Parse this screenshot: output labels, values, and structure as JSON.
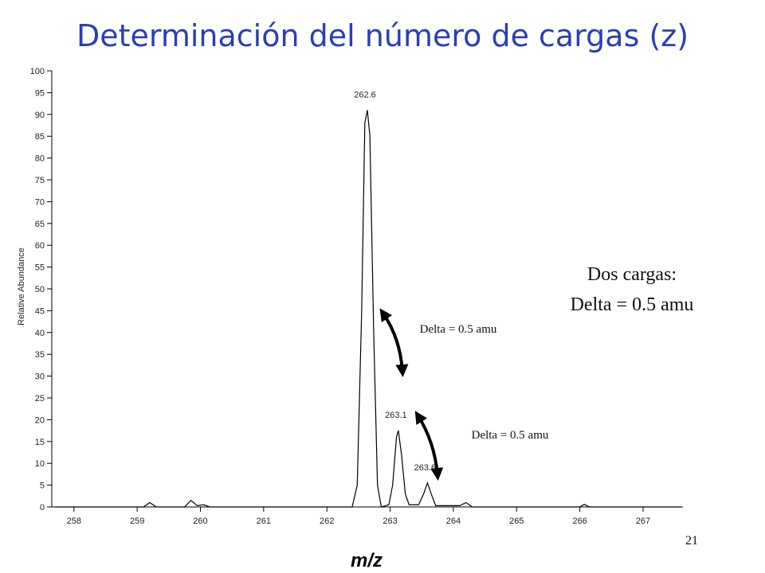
{
  "chart_data": {
    "type": "line",
    "title": "Determinación del número de cargas (z)",
    "y_label": "Relative Abundance",
    "x_label": "m/z",
    "color": "#000000",
    "xlim": [
      257.65,
      267.63
    ],
    "ylim": [
      0,
      100
    ],
    "xticks": [
      258,
      259,
      260,
      261,
      262,
      263,
      264,
      265,
      266,
      267
    ],
    "yticks": [
      0,
      5,
      10,
      15,
      20,
      25,
      30,
      35,
      40,
      45,
      50,
      55,
      60,
      65,
      70,
      75,
      80,
      85,
      90,
      95,
      100
    ],
    "x": [
      257.7,
      259.1,
      259.2,
      259.3,
      259.75,
      259.85,
      259.95,
      260.05,
      260.15,
      262.4,
      262.48,
      262.55,
      262.6,
      262.64,
      262.68,
      262.74,
      262.8,
      262.86,
      262.98,
      263.04,
      263.1,
      263.13,
      263.18,
      263.24,
      263.3,
      263.45,
      263.53,
      263.59,
      263.65,
      263.72,
      264.1,
      264.2,
      264.3,
      266.0,
      266.07,
      266.15,
      267.6
    ],
    "values": [
      0,
      0,
      1,
      0,
      0,
      1.5,
      0.3,
      0.5,
      0,
      0,
      5,
      45,
      88,
      91,
      85,
      40,
      5,
      0,
      0.5,
      5,
      16,
      17.5,
      12,
      3,
      0.5,
      0.5,
      3,
      5.5,
      3,
      0.3,
      0.3,
      1,
      0,
      0,
      0.6,
      0,
      0
    ],
    "peak_labels": [
      {
        "text": "262.6",
        "x": 262.64,
        "y": 91
      },
      {
        "text": "263.1",
        "x": 263.13,
        "y": 17.5
      },
      {
        "text": "263.6",
        "x": 263.59,
        "y": 5.5
      }
    ],
    "annotations": [
      "Delta = 0.5 amu",
      "Delta = 0.5 amu"
    ],
    "note_lines": [
      "Dos cargas:",
      "Delta = 0.5 amu"
    ],
    "page_number": "21"
  }
}
